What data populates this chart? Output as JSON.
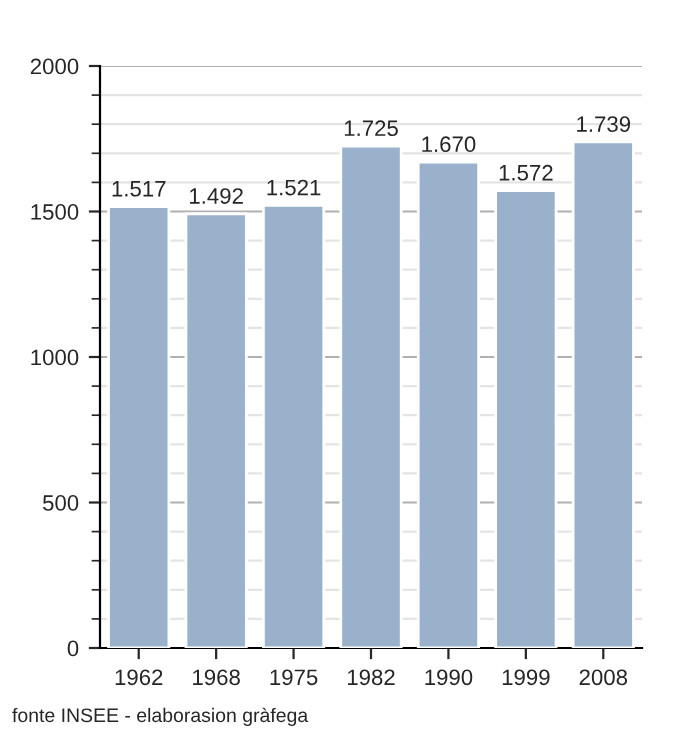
{
  "chart_data": {
    "type": "bar",
    "categories": [
      "1962",
      "1968",
      "1975",
      "1982",
      "1990",
      "1999",
      "2008"
    ],
    "values": [
      1517,
      1492,
      1521,
      1725,
      1670,
      1572,
      1739
    ],
    "value_labels": [
      "1.517",
      "1.492",
      "1.521",
      "1.725",
      "1.670",
      "1.572",
      "1.739"
    ],
    "color": "#99b1cb",
    "ylim": [
      0,
      2000
    ],
    "yticks": [
      0,
      500,
      1000,
      1500,
      2000
    ],
    "grid": "y",
    "annotations": [
      "fonte INSEE - elaborasion gràfega"
    ]
  }
}
